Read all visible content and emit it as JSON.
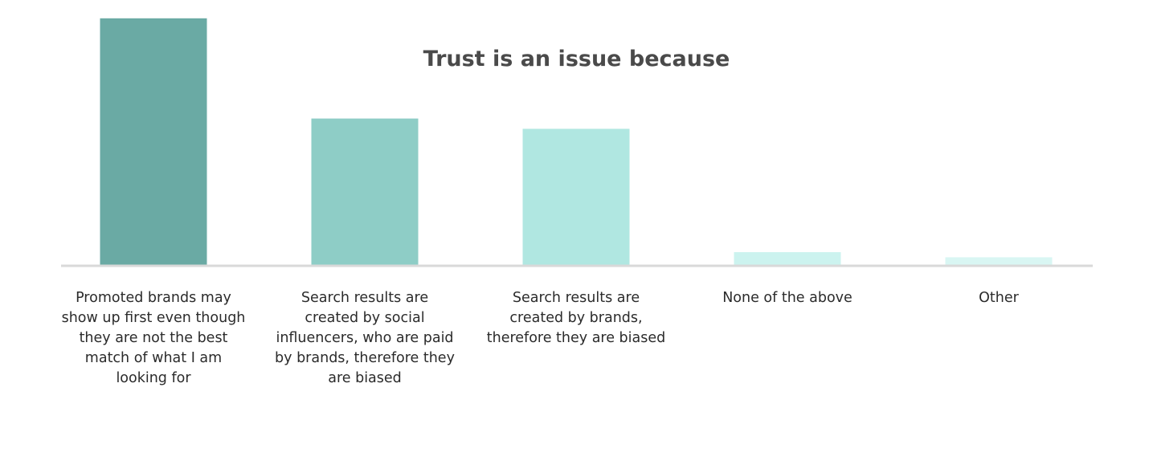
{
  "chart_data": {
    "type": "bar",
    "title": "Trust is an issue because",
    "xlabel": "",
    "ylabel": "",
    "categories": [
      "Promoted brands may show up first even though they are not the best match of what I am looking for",
      "Search results are created by social influencers, who are paid by brands, therefore they are biased",
      "Search results are created by brands, therefore they are biased",
      "None of the above",
      "Other"
    ],
    "values": [
      48,
      28.5,
      26.5,
      2.5,
      1.5
    ],
    "ylim": [
      0,
      50
    ],
    "colors": [
      "#6aaaa4",
      "#8ecdc6",
      "#b0e7e1",
      "#ccf3ef",
      "#d9f6f3"
    ],
    "grid": false,
    "legend": "none"
  }
}
